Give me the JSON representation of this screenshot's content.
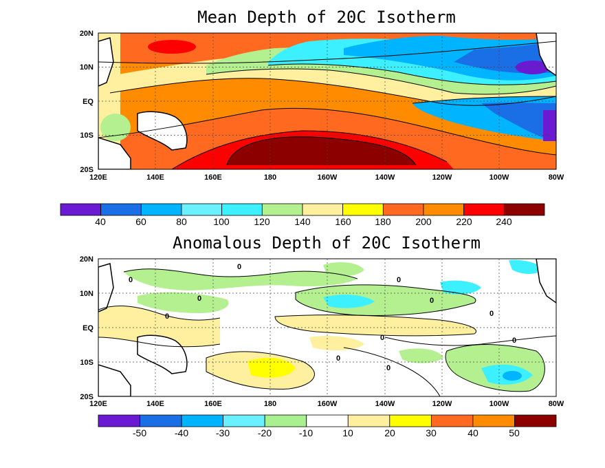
{
  "figure": {
    "panels": [
      {
        "title": "Mean Depth of 20C Isotherm",
        "lat_labels": [
          "20N",
          "10N",
          "EQ",
          "10S",
          "20S"
        ],
        "lon_labels": [
          "120E",
          "140E",
          "160E",
          "180",
          "160W",
          "140W",
          "120W",
          "100W",
          "80W"
        ],
        "colorbar": {
          "colors": [
            "#6a1ad2",
            "#1a6ee6",
            "#00b4ff",
            "#6af0ff",
            "#3cf0ff",
            "#b4f090",
            "#fff0a0",
            "#ffff00",
            "#ff6a20",
            "#ff8c00",
            "#ff0000",
            "#8c0000"
          ],
          "labels": [
            "40",
            "60",
            "80",
            "100",
            "120",
            "140",
            "160",
            "180",
            "200",
            "220",
            "240"
          ]
        }
      },
      {
        "title": "Anomalous Depth of 20C Isotherm",
        "lat_labels": [
          "20N",
          "10N",
          "EQ",
          "10S",
          "20S"
        ],
        "lon_labels": [
          "120E",
          "140E",
          "160E",
          "180",
          "160W",
          "140W",
          "120W",
          "100W",
          "80W"
        ],
        "contour_label": "0",
        "colorbar": {
          "colors": [
            "#6a1ad2",
            "#1a6ee6",
            "#00b4ff",
            "#6af0ff",
            "#a8f090",
            "#ffffff",
            "#fff0a0",
            "#ffff00",
            "#ff6a20",
            "#ff8c00",
            "#8c0000"
          ],
          "labels": [
            "-50",
            "-40",
            "-30",
            "-20",
            "-10",
            "10",
            "20",
            "30",
            "40",
            "50"
          ]
        }
      }
    ]
  }
}
